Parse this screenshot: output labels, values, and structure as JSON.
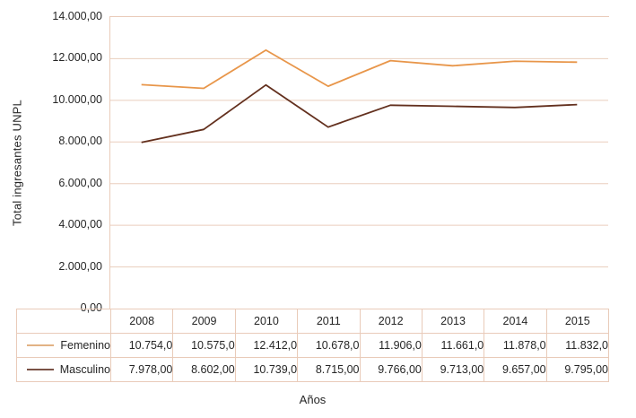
{
  "chart_data": {
    "type": "line",
    "title": "",
    "ylabel": "Total ingresantes UNPL",
    "xlabel": "Años",
    "categories": [
      "2008",
      "2009",
      "2010",
      "2011",
      "2012",
      "2013",
      "2014",
      "2015"
    ],
    "ylim": [
      0,
      14000
    ],
    "ytick_step": 2000,
    "yticks_top_to_bottom": [
      "14.000,00",
      "12.000,00",
      "10.000,00",
      "8.000,00",
      "6.000,00",
      "4.000,00",
      "2.000,00",
      "0,00"
    ],
    "grid": true,
    "legend_position": "table-left",
    "series": [
      {
        "name": "Femenino",
        "line_color": "#E8964A",
        "legend_swatch_color": "#E2B284",
        "values": [
          10754,
          10575,
          12412,
          10678,
          11906,
          11661,
          11878,
          11832
        ],
        "display_values": [
          "10.754,0",
          "10.575,0",
          "12.412,0",
          "10.678,0",
          "11.906,0",
          "11.661,0",
          "11.878,0",
          "11.832,0"
        ]
      },
      {
        "name": "Masculino",
        "line_color": "#63301E",
        "legend_swatch_color": "#7A5246",
        "values": [
          7978,
          8602,
          10739,
          8715,
          9766,
          9713,
          9657,
          9795
        ],
        "display_values": [
          "7.978,00",
          "8.602,00",
          "10.739,0",
          "8.715,00",
          "9.766,00",
          "9.713,00",
          "9.657,00",
          "9.795,00"
        ]
      }
    ],
    "colors": {
      "grid": "#EACEBD",
      "plot_border": "#E9CBB9",
      "table_border": "#E9CBB9",
      "text": "#262626"
    }
  }
}
